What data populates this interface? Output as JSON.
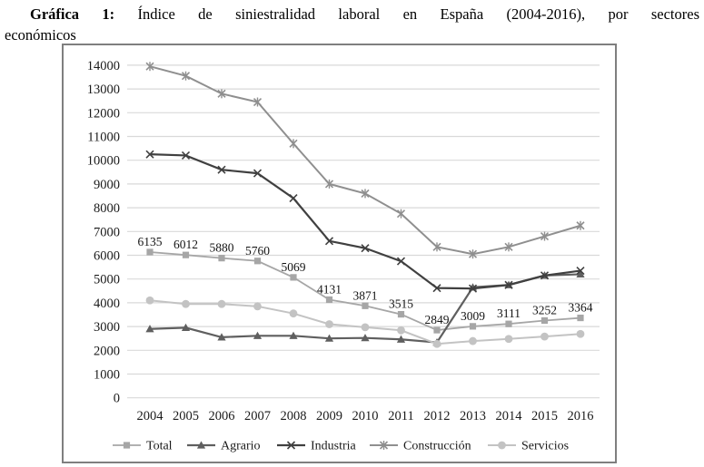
{
  "caption": {
    "prefix": "Gráfica 1:",
    "line1_rest": "Índice de siniestralidad laboral en España (2004-2016), por sectores",
    "line2": "económicos"
  },
  "chart_data": {
    "type": "line",
    "title": "Índice de siniestralidad laboral en España (2004-2016), por sectores económicos",
    "xlabel": "",
    "ylabel": "",
    "categories": [
      "2004",
      "2005",
      "2006",
      "2007",
      "2008",
      "2009",
      "2010",
      "2011",
      "2012",
      "2013",
      "2014",
      "2015",
      "2016"
    ],
    "ylim": [
      0,
      14000
    ],
    "ytick_step": 1000,
    "grid": true,
    "legend_position": "bottom",
    "series": [
      {
        "name": "Total",
        "marker": "square",
        "color": "#a6a6a6",
        "line_width": 1.8,
        "show_labels": true,
        "values": [
          6135,
          6012,
          5880,
          5760,
          5069,
          4131,
          3871,
          3515,
          2849,
          3009,
          3111,
          3252,
          3364
        ]
      },
      {
        "name": "Agrario",
        "marker": "triangle",
        "color": "#5f5f5f",
        "line_width": 2.2,
        "show_labels": false,
        "values": [
          2900,
          2950,
          2550,
          2610,
          2610,
          2500,
          2520,
          2460,
          2330,
          4650,
          4750,
          5150,
          5200
        ]
      },
      {
        "name": "Industria",
        "marker": "x",
        "color": "#404040",
        "line_width": 2.2,
        "show_labels": false,
        "values": [
          10250,
          10200,
          9600,
          9450,
          8400,
          6600,
          6300,
          5750,
          4620,
          4600,
          4750,
          5150,
          5350
        ]
      },
      {
        "name": "Construcción",
        "marker": "asterisk",
        "color": "#8f8f8f",
        "line_width": 2.0,
        "show_labels": false,
        "values": [
          13950,
          13550,
          12800,
          12450,
          10700,
          9000,
          8600,
          7750,
          6350,
          6050,
          6350,
          6800,
          7250
        ]
      },
      {
        "name": "Servicios",
        "marker": "circle",
        "color": "#c3c3c3",
        "line_width": 2.0,
        "show_labels": false,
        "values": [
          4100,
          3950,
          3950,
          3850,
          3550,
          3100,
          2970,
          2840,
          2270,
          2390,
          2480,
          2580,
          2690
        ]
      }
    ],
    "colors": {
      "grid": "#d9d9d9",
      "axis_text": "#1a1a1a",
      "data_label_text": "#141414",
      "frame_border": "#7f7f7f"
    }
  }
}
